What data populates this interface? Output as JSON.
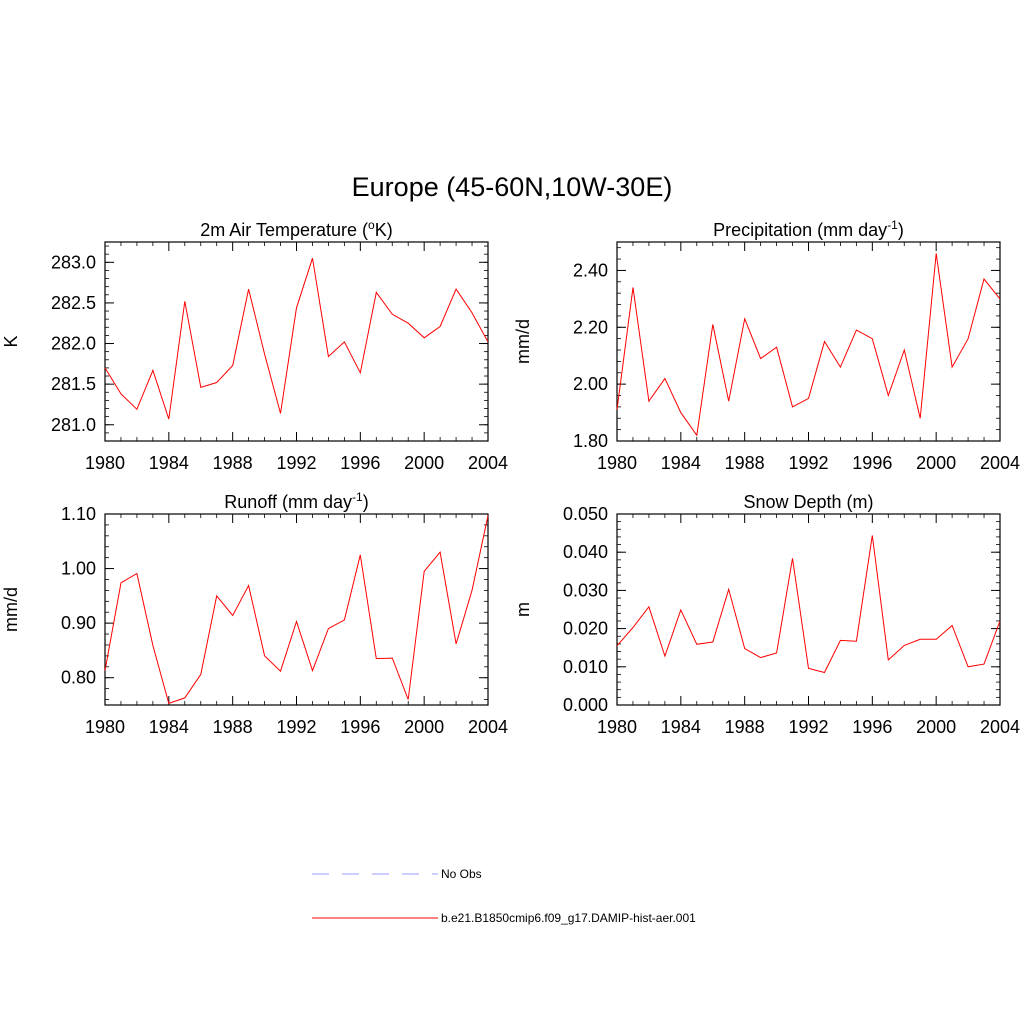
{
  "figure": {
    "title": "Europe (45-60N,10W-30E)"
  },
  "legend": {
    "entries": [
      {
        "label": "No Obs",
        "color": "#9999ff",
        "style": "dashed"
      },
      {
        "label": "b.e21.B1850cmip6.f09_g17.DAMIP-hist-aer.001",
        "color": "#ff0000",
        "style": "solid"
      }
    ]
  },
  "chart_data": [
    {
      "type": "line",
      "title": "2m Air Temperature (",
      "title_sup": "o",
      "title_suffix": "K)",
      "ylabel": "K",
      "xlim": [
        1980,
        2004
      ],
      "ylim": [
        280.8,
        283.25
      ],
      "xticks": [
        1980,
        1984,
        1988,
        1992,
        1996,
        2000,
        2004
      ],
      "yticks": [
        281.0,
        281.5,
        282.0,
        282.5,
        283.0
      ],
      "ytick_decimals": 1,
      "yminor_step": 0.1,
      "grid": false,
      "series": [
        {
          "color": "#ff0000",
          "x": [
            1980,
            1981,
            1982,
            1983,
            1984,
            1985,
            1986,
            1987,
            1988,
            1989,
            1990,
            1991,
            1992,
            1993,
            1994,
            1995,
            1996,
            1997,
            1998,
            1999,
            2000,
            2001,
            2002,
            2003,
            2004
          ],
          "values": [
            281.7,
            281.38,
            281.19,
            281.67,
            281.07,
            282.52,
            281.46,
            281.52,
            281.73,
            282.67,
            281.87,
            281.14,
            282.44,
            283.05,
            281.84,
            282.02,
            281.64,
            282.63,
            282.36,
            282.25,
            282.07,
            282.21,
            282.67,
            282.38,
            282.02
          ]
        }
      ]
    },
    {
      "type": "line",
      "title": "Precipitation (mm day",
      "title_sup": "-1",
      "title_suffix": ")",
      "ylabel": "mm/d",
      "xlim": [
        1980,
        2004
      ],
      "ylim": [
        1.8,
        2.5
      ],
      "xticks": [
        1980,
        1984,
        1988,
        1992,
        1996,
        2000,
        2004
      ],
      "yticks": [
        1.8,
        2.0,
        2.2,
        2.4
      ],
      "ytick_decimals": 2,
      "yminor_step": 0.04,
      "grid": false,
      "series": [
        {
          "color": "#ff0000",
          "x": [
            1980,
            1981,
            1982,
            1983,
            1984,
            1985,
            1986,
            1987,
            1988,
            1989,
            1990,
            1991,
            1992,
            1993,
            1994,
            1995,
            1996,
            1997,
            1998,
            1999,
            2000,
            2001,
            2002,
            2003,
            2004
          ],
          "values": [
            1.91,
            2.34,
            1.94,
            2.02,
            1.9,
            1.82,
            2.21,
            1.94,
            2.23,
            2.09,
            2.13,
            1.92,
            1.95,
            2.15,
            2.06,
            2.19,
            2.16,
            1.96,
            2.12,
            1.88,
            2.46,
            2.06,
            2.16,
            2.37,
            2.3
          ]
        }
      ]
    },
    {
      "type": "line",
      "title": "Runoff (mm day",
      "title_sup": "-1",
      "title_suffix": ")",
      "ylabel": "mm/d",
      "xlim": [
        1980,
        2004
      ],
      "ylim": [
        0.75,
        1.1
      ],
      "xticks": [
        1980,
        1984,
        1988,
        1992,
        1996,
        2000,
        2004
      ],
      "yticks": [
        0.8,
        0.9,
        1.0,
        1.1
      ],
      "ytick_decimals": 2,
      "yminor_step": 0.02,
      "grid": false,
      "series": [
        {
          "color": "#ff0000",
          "x": [
            1980,
            1981,
            1982,
            1983,
            1984,
            1985,
            1986,
            1987,
            1988,
            1989,
            1990,
            1991,
            1992,
            1993,
            1994,
            1995,
            1996,
            1997,
            1998,
            1999,
            2000,
            2001,
            2002,
            2003,
            2004
          ],
          "values": [
            0.813,
            0.974,
            0.991,
            0.859,
            0.753,
            0.763,
            0.806,
            0.95,
            0.914,
            0.969,
            0.84,
            0.812,
            0.903,
            0.813,
            0.89,
            0.906,
            1.025,
            0.835,
            0.836,
            0.76,
            0.995,
            1.03,
            0.862,
            0.96,
            1.097
          ]
        }
      ]
    },
    {
      "type": "line",
      "title": "Snow Depth (m)",
      "title_sup": "",
      "title_suffix": "",
      "ylabel": "m",
      "xlim": [
        1980,
        2004
      ],
      "ylim": [
        0.0,
        0.05
      ],
      "xticks": [
        1980,
        1984,
        1988,
        1992,
        1996,
        2000,
        2004
      ],
      "yticks": [
        0.0,
        0.01,
        0.02,
        0.03,
        0.04,
        0.05
      ],
      "ytick_decimals": 3,
      "yminor_step": 0.002,
      "grid": false,
      "series": [
        {
          "color": "#ff0000",
          "x": [
            1980,
            1981,
            1982,
            1983,
            1984,
            1985,
            1986,
            1987,
            1988,
            1989,
            1990,
            1991,
            1992,
            1993,
            1994,
            1995,
            1996,
            1997,
            1998,
            1999,
            2000,
            2001,
            2002,
            2003,
            2004
          ],
          "values": [
            0.0155,
            0.0203,
            0.0257,
            0.0128,
            0.0249,
            0.0159,
            0.0165,
            0.0303,
            0.0148,
            0.0124,
            0.0136,
            0.0384,
            0.0096,
            0.0085,
            0.0169,
            0.0167,
            0.0444,
            0.0118,
            0.0156,
            0.0172,
            0.0172,
            0.0208,
            0.01,
            0.0107,
            0.022
          ]
        }
      ]
    }
  ]
}
